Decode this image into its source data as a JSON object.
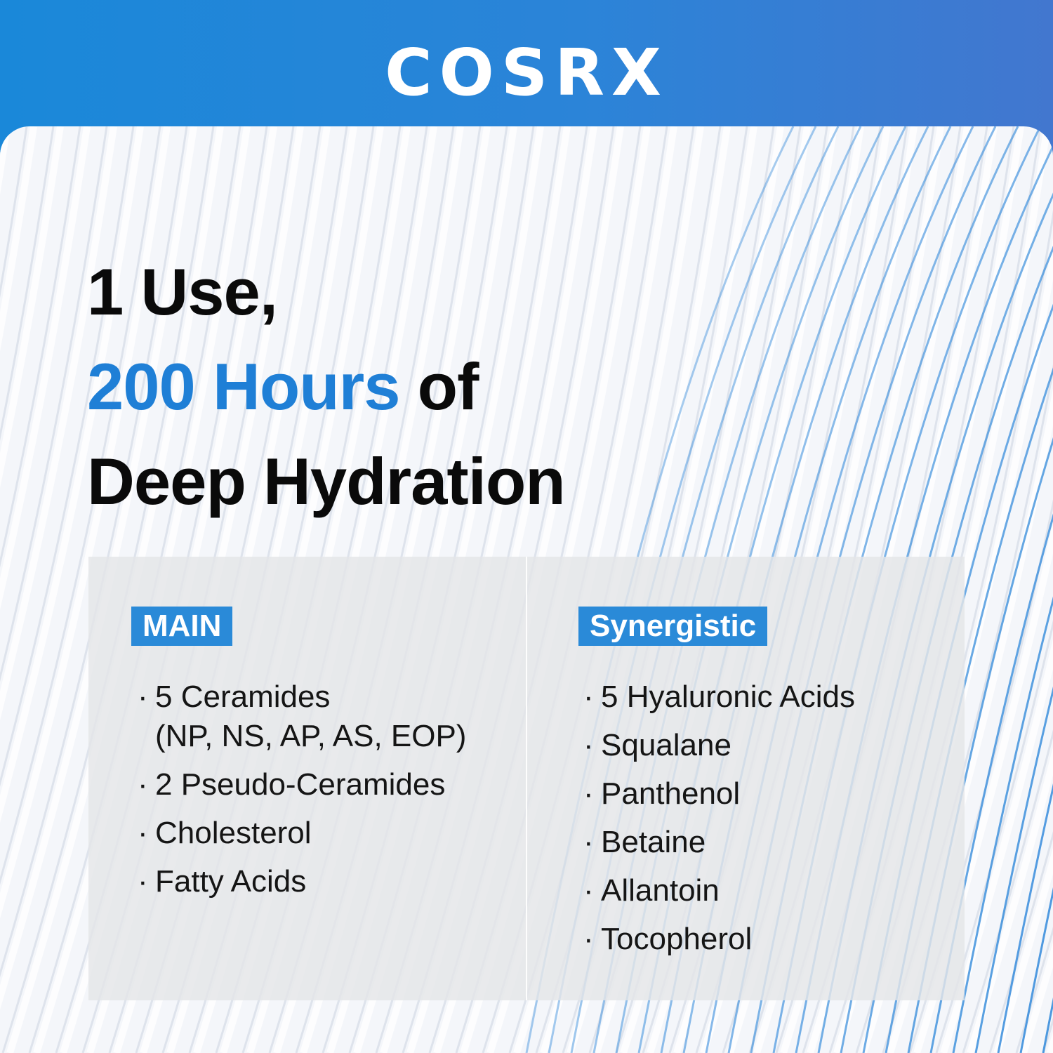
{
  "brand": {
    "logo_text": "COSRX",
    "header_color": "#1a88d9",
    "accent_color": "#2a8ad8"
  },
  "headline": {
    "line1": "1 Use,",
    "line2_highlight": "200 Hours",
    "line2_rest": " of",
    "line3": "Deep Hydration"
  },
  "main": {
    "badge": "MAIN",
    "items": [
      {
        "label": "5 Ceramides",
        "sub": "(NP, NS, AP, AS, EOP)"
      },
      {
        "label": "2 Pseudo-Ceramides"
      },
      {
        "label": "Cholesterol"
      },
      {
        "label": "Fatty Acids"
      }
    ]
  },
  "synergistic": {
    "badge": "Synergistic",
    "items": [
      "5 Hyaluronic Acids",
      "Squalane",
      "Panthenol",
      "Betaine",
      "Allantoin",
      "Tocopherol"
    ]
  }
}
